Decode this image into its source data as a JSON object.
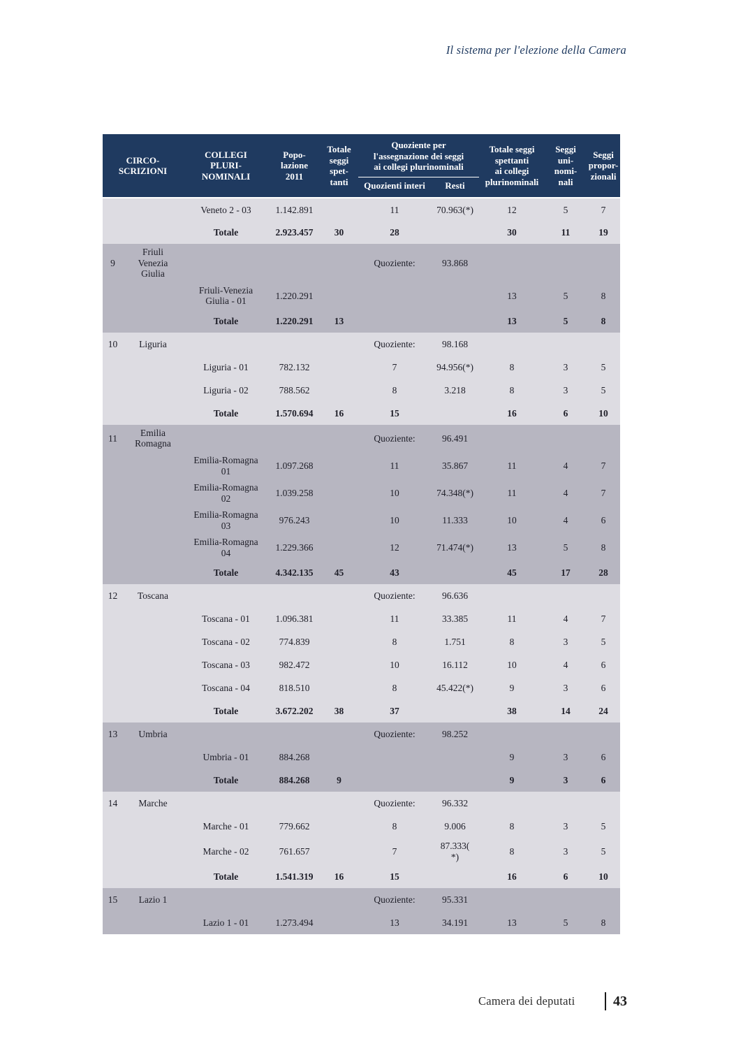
{
  "page": {
    "running_header": "Il sistema per l'elezione della Camera",
    "footer": {
      "label": "Camera dei deputati",
      "page_number": "43"
    }
  },
  "colors": {
    "header_bg": "#1f3a60",
    "header_text": "#ffffff",
    "band_light": "#dddce2",
    "band_dark": "#b7b6c1",
    "body_text": "#20202a"
  },
  "table": {
    "header": {
      "circoscrizioni": "CIRCO-\nSCRIZIONI",
      "collegi": "COLLEGI\nPLURI-\nNOMINALI",
      "popolazione": "Popo-\nlazione\n2011",
      "totale_seggi": "Totale\nseggi\nspet-\ntanti",
      "quoziente_group": "Quoziente per\nl'assegnazione dei seggi\nai collegi plurinominali",
      "quozienti_interi": "Quozienti interi",
      "resti": "Resti",
      "totale_seggi_collegi": "Totale seggi\nspettanti\nai collegi\nplurinominali",
      "seggi_uninominali": "Seggi\nuni-\nnomi-\nnali",
      "seggi_proporzionali": "Seggi\npropor-\nzionali"
    },
    "sections": [
      {
        "number": "",
        "region": "",
        "shade": "light",
        "quotient_label": "",
        "quotient_value": "",
        "rows": [
          {
            "collegio": "Veneto 2 - 03",
            "pop": "1.142.891",
            "tot": "",
            "interi": "11",
            "resti": "70.963(*)",
            "tot_pluri": "12",
            "uni": "5",
            "prop": "7",
            "bold": false
          },
          {
            "collegio": "Totale",
            "pop": "2.923.457",
            "tot": "30",
            "interi": "28",
            "resti": "",
            "tot_pluri": "30",
            "uni": "11",
            "prop": "19",
            "bold": true
          }
        ]
      },
      {
        "number": "9",
        "region": "Friuli\nVenezia\nGiulia",
        "shade": "dark",
        "quotient_label": "Quoziente:",
        "quotient_value": "93.868",
        "rows": [
          {
            "collegio": "Friuli-Venezia\nGiulia - 01",
            "pop": "1.220.291",
            "tot": "",
            "interi": "",
            "resti": "",
            "tot_pluri": "13",
            "uni": "5",
            "prop": "8",
            "bold": false
          },
          {
            "collegio": "Totale",
            "pop": "1.220.291",
            "tot": "13",
            "interi": "",
            "resti": "",
            "tot_pluri": "13",
            "uni": "5",
            "prop": "8",
            "bold": true
          }
        ]
      },
      {
        "number": "10",
        "region": "Liguria",
        "shade": "light",
        "quotient_label": "Quoziente:",
        "quotient_value": "98.168",
        "rows": [
          {
            "collegio": "Liguria - 01",
            "pop": "782.132",
            "tot": "",
            "interi": "7",
            "resti": "94.956(*)",
            "tot_pluri": "8",
            "uni": "3",
            "prop": "5",
            "bold": false
          },
          {
            "collegio": "Liguria - 02",
            "pop": "788.562",
            "tot": "",
            "interi": "8",
            "resti": "3.218",
            "tot_pluri": "8",
            "uni": "3",
            "prop": "5",
            "bold": false
          },
          {
            "collegio": "Totale",
            "pop": "1.570.694",
            "tot": "16",
            "interi": "15",
            "resti": "",
            "tot_pluri": "16",
            "uni": "6",
            "prop": "10",
            "bold": true
          }
        ]
      },
      {
        "number": "11",
        "region": "Emilia\nRomagna",
        "shade": "dark",
        "quotient_label": "Quoziente:",
        "quotient_value": "96.491",
        "rows": [
          {
            "collegio": "Emilia-Romagna\n01",
            "pop": "1.097.268",
            "tot": "",
            "interi": "11",
            "resti": "35.867",
            "tot_pluri": "11",
            "uni": "4",
            "prop": "7",
            "bold": false
          },
          {
            "collegio": "Emilia-Romagna\n02",
            "pop": "1.039.258",
            "tot": "",
            "interi": "10",
            "resti": "74.348(*)",
            "tot_pluri": "11",
            "uni": "4",
            "prop": "7",
            "bold": false
          },
          {
            "collegio": "Emilia-Romagna\n03",
            "pop": "976.243",
            "tot": "",
            "interi": "10",
            "resti": "11.333",
            "tot_pluri": "10",
            "uni": "4",
            "prop": "6",
            "bold": false
          },
          {
            "collegio": "Emilia-Romagna\n04",
            "pop": "1.229.366",
            "tot": "",
            "interi": "12",
            "resti": "71.474(*)",
            "tot_pluri": "13",
            "uni": "5",
            "prop": "8",
            "bold": false
          },
          {
            "collegio": "Totale",
            "pop": "4.342.135",
            "tot": "45",
            "interi": "43",
            "resti": "",
            "tot_pluri": "45",
            "uni": "17",
            "prop": "28",
            "bold": true
          }
        ]
      },
      {
        "number": "12",
        "region": "Toscana",
        "shade": "light",
        "quotient_label": "Quoziente:",
        "quotient_value": "96.636",
        "rows": [
          {
            "collegio": "Toscana - 01",
            "pop": "1.096.381",
            "tot": "",
            "interi": "11",
            "resti": "33.385",
            "tot_pluri": "11",
            "uni": "4",
            "prop": "7",
            "bold": false
          },
          {
            "collegio": "Toscana - 02",
            "pop": "774.839",
            "tot": "",
            "interi": "8",
            "resti": "1.751",
            "tot_pluri": "8",
            "uni": "3",
            "prop": "5",
            "bold": false
          },
          {
            "collegio": "Toscana - 03",
            "pop": "982.472",
            "tot": "",
            "interi": "10",
            "resti": "16.112",
            "tot_pluri": "10",
            "uni": "4",
            "prop": "6",
            "bold": false
          },
          {
            "collegio": "Toscana - 04",
            "pop": "818.510",
            "tot": "",
            "interi": "8",
            "resti": "45.422(*)",
            "tot_pluri": "9",
            "uni": "3",
            "prop": "6",
            "bold": false
          },
          {
            "collegio": "Totale",
            "pop": "3.672.202",
            "tot": "38",
            "interi": "37",
            "resti": "",
            "tot_pluri": "38",
            "uni": "14",
            "prop": "24",
            "bold": true
          }
        ]
      },
      {
        "number": "13",
        "region": "Umbria",
        "shade": "dark",
        "quotient_label": "Quoziente:",
        "quotient_value": "98.252",
        "rows": [
          {
            "collegio": "Umbria - 01",
            "pop": "884.268",
            "tot": "",
            "interi": "",
            "resti": "",
            "tot_pluri": "9",
            "uni": "3",
            "prop": "6",
            "bold": false
          },
          {
            "collegio": "Totale",
            "pop": "884.268",
            "tot": "9",
            "interi": "",
            "resti": "",
            "tot_pluri": "9",
            "uni": "3",
            "prop": "6",
            "bold": true
          }
        ]
      },
      {
        "number": "14",
        "region": "Marche",
        "shade": "light",
        "quotient_label": "Quoziente:",
        "quotient_value": "96.332",
        "rows": [
          {
            "collegio": "Marche - 01",
            "pop": "779.662",
            "tot": "",
            "interi": "8",
            "resti": "9.006",
            "tot_pluri": "8",
            "uni": "3",
            "prop": "5",
            "bold": false
          },
          {
            "collegio": "Marche - 02",
            "pop": "761.657",
            "tot": "",
            "interi": "7",
            "resti": "87.333(\n*)",
            "tot_pluri": "8",
            "uni": "3",
            "prop": "5",
            "bold": false
          },
          {
            "collegio": "Totale",
            "pop": "1.541.319",
            "tot": "16",
            "interi": "15",
            "resti": "",
            "tot_pluri": "16",
            "uni": "6",
            "prop": "10",
            "bold": true
          }
        ]
      },
      {
        "number": "15",
        "region": "Lazio 1",
        "shade": "dark",
        "quotient_label": "Quoziente:",
        "quotient_value": "95.331",
        "rows": [
          {
            "collegio": "Lazio 1 - 01",
            "pop": "1.273.494",
            "tot": "",
            "interi": "13",
            "resti": "34.191",
            "tot_pluri": "13",
            "uni": "5",
            "prop": "8",
            "bold": false
          }
        ]
      }
    ]
  }
}
